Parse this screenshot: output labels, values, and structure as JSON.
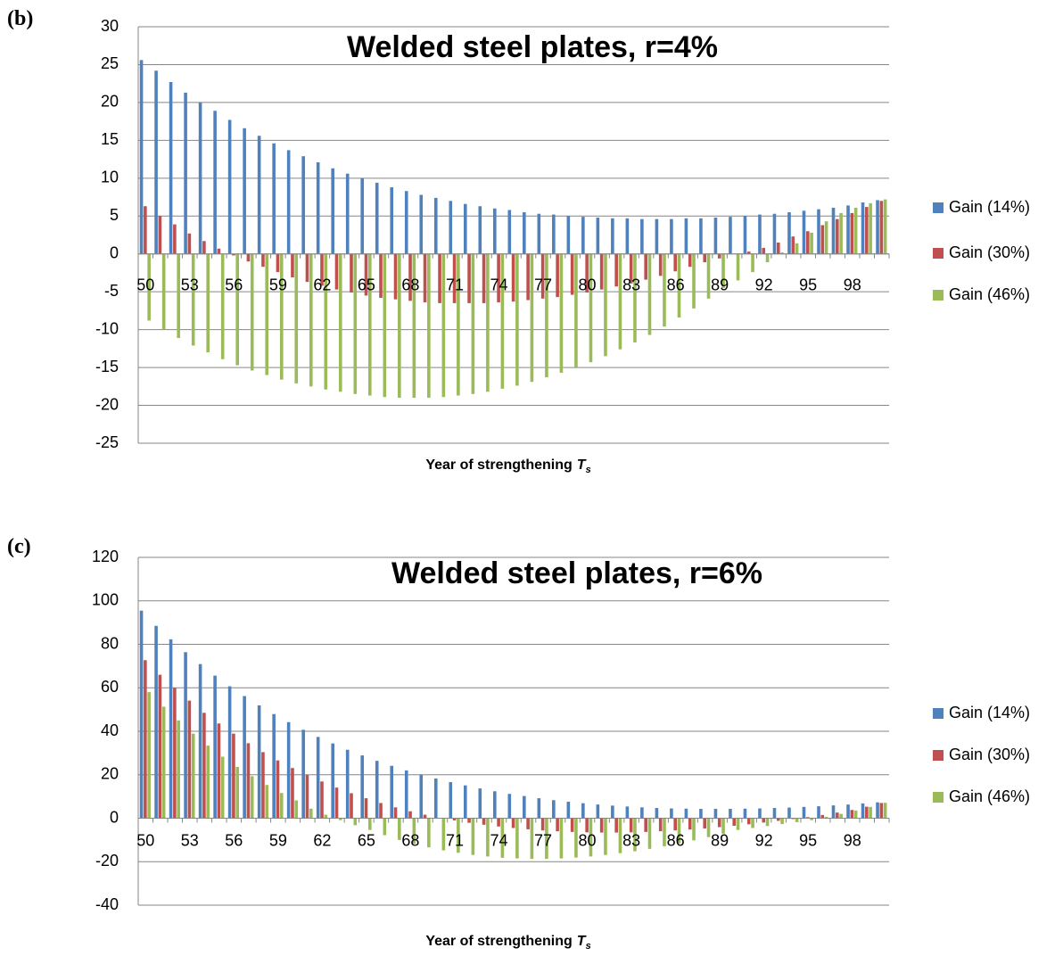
{
  "chart_data": [
    {
      "type": "bar",
      "panel_label": "(b)",
      "title": "Welded steel plates, r=4%",
      "x_label": "Year of strengthening",
      "x_label_var": "T",
      "x_label_sub": "s",
      "categories": [
        "50",
        null,
        null,
        "53",
        null,
        null,
        "56",
        null,
        null,
        "59",
        null,
        null,
        "62",
        null,
        null,
        "65",
        null,
        null,
        "68",
        null,
        null,
        "71",
        null,
        null,
        "74",
        null,
        null,
        "77",
        null,
        null,
        "80",
        null,
        null,
        "83",
        null,
        null,
        "86",
        null,
        null,
        "89",
        null,
        null,
        "92",
        null,
        null,
        "95",
        null,
        null,
        "98",
        null,
        null
      ],
      "series": [
        {
          "name": "Gain (14%)",
          "color": "#4f81bd",
          "values": [
            25.6,
            24.2,
            22.7,
            21.3,
            20.0,
            18.9,
            17.7,
            16.6,
            15.6,
            14.6,
            13.7,
            12.9,
            12.1,
            11.3,
            10.6,
            10.0,
            9.4,
            8.8,
            8.3,
            7.8,
            7.4,
            7.0,
            6.6,
            6.3,
            6.0,
            5.8,
            5.5,
            5.3,
            5.2,
            5.0,
            4.9,
            4.8,
            4.7,
            4.7,
            4.6,
            4.6,
            4.6,
            4.7,
            4.7,
            4.8,
            4.9,
            5.0,
            5.2,
            5.3,
            5.5,
            5.7,
            5.9,
            6.1,
            6.4,
            6.8,
            7.1
          ]
        },
        {
          "name": "Gain (30%)",
          "color": "#c0504d",
          "values": [
            6.3,
            5.0,
            3.9,
            2.7,
            1.7,
            0.7,
            -0.2,
            -1.0,
            -1.7,
            -2.4,
            -3.1,
            -3.7,
            -4.2,
            -4.7,
            -5.1,
            -5.5,
            -5.8,
            -6.0,
            -6.2,
            -6.4,
            -6.5,
            -6.5,
            -6.5,
            -6.5,
            -6.4,
            -6.3,
            -6.1,
            -5.9,
            -5.7,
            -5.4,
            -5.1,
            -4.7,
            -4.3,
            -3.9,
            -3.4,
            -2.9,
            -2.3,
            -1.7,
            -1.1,
            -0.6,
            0.0,
            0.3,
            0.8,
            1.5,
            2.3,
            3.0,
            3.8,
            4.6,
            5.4,
            6.2,
            7.0
          ]
        },
        {
          "name": "Gain (46%)",
          "color": "#9bbb59",
          "values": [
            -8.8,
            -10.0,
            -11.1,
            -12.1,
            -13.0,
            -13.9,
            -14.7,
            -15.4,
            -16.0,
            -16.6,
            -17.1,
            -17.5,
            -17.9,
            -18.2,
            -18.5,
            -18.7,
            -18.9,
            -19.0,
            -19.0,
            -19.0,
            -18.9,
            -18.7,
            -18.5,
            -18.2,
            -17.8,
            -17.4,
            -16.9,
            -16.3,
            -15.7,
            -15.0,
            -14.3,
            -13.5,
            -12.6,
            -11.7,
            -10.7,
            -9.6,
            -8.4,
            -7.2,
            -5.9,
            -4.5,
            -3.5,
            -2.4,
            -1.1,
            0.2,
            1.4,
            2.8,
            4.3,
            5.4,
            6.1,
            6.7,
            7.2
          ]
        }
      ],
      "ylim": [
        -25,
        30
      ],
      "yticks": [
        -25,
        -20,
        -15,
        -10,
        -5,
        0,
        5,
        10,
        15,
        20,
        25,
        30
      ],
      "grid": true,
      "legend": "right"
    },
    {
      "type": "bar",
      "panel_label": "(c)",
      "title": "Welded steel plates, r=6%",
      "x_label": "Year of strengthening",
      "x_label_var": "T",
      "x_label_sub": "s",
      "categories": [
        "50",
        null,
        null,
        "53",
        null,
        null,
        "56",
        null,
        null,
        "59",
        null,
        null,
        "62",
        null,
        null,
        "65",
        null,
        null,
        "68",
        null,
        null,
        "71",
        null,
        null,
        "74",
        null,
        null,
        "77",
        null,
        null,
        "80",
        null,
        null,
        "83",
        null,
        null,
        "86",
        null,
        null,
        "89",
        null,
        null,
        "92",
        null,
        null,
        "95",
        null,
        null,
        "98",
        null,
        null
      ],
      "series": [
        {
          "name": "Gain (14%)",
          "color": "#4f81bd",
          "values": [
            95.5,
            88.5,
            82.3,
            76.4,
            70.9,
            65.6,
            60.7,
            56.2,
            51.9,
            47.9,
            44.2,
            40.7,
            37.4,
            34.4,
            31.5,
            28.9,
            26.4,
            24.1,
            22.0,
            20.1,
            18.3,
            16.6,
            15.1,
            13.7,
            12.4,
            11.2,
            10.2,
            9.2,
            8.3,
            7.6,
            6.9,
            6.3,
            5.8,
            5.4,
            5.0,
            4.7,
            4.5,
            4.4,
            4.3,
            4.3,
            4.3,
            4.4,
            4.5,
            4.7,
            4.9,
            5.2,
            5.5,
            5.9,
            6.3,
            6.8,
            7.3
          ]
        },
        {
          "name": "Gain (30%)",
          "color": "#c0504d",
          "values": [
            72.7,
            66.0,
            60.0,
            54.1,
            48.5,
            43.6,
            38.9,
            34.5,
            30.4,
            26.6,
            23.1,
            19.9,
            16.9,
            14.1,
            11.5,
            9.2,
            7.0,
            5.0,
            3.2,
            1.6,
            0.2,
            -1.0,
            -2.1,
            -3.0,
            -3.8,
            -4.5,
            -5.1,
            -5.6,
            -6.0,
            -6.3,
            -6.5,
            -6.6,
            -6.6,
            -6.5,
            -6.3,
            -6.0,
            -5.6,
            -5.2,
            -4.7,
            -4.1,
            -3.5,
            -2.8,
            -2.0,
            -1.2,
            -0.4,
            0.5,
            1.5,
            2.6,
            3.8,
            5.3,
            7.0
          ]
        },
        {
          "name": "Gain (46%)",
          "color": "#9bbb59",
          "values": [
            58.0,
            51.3,
            45.0,
            38.9,
            33.4,
            28.3,
            23.6,
            19.3,
            15.3,
            11.6,
            8.2,
            4.4,
            1.6,
            -0.9,
            -3.2,
            -5.4,
            -7.8,
            -10.0,
            -11.8,
            -13.4,
            -14.8,
            -15.9,
            -16.9,
            -17.6,
            -18.2,
            -18.5,
            -18.7,
            -18.7,
            -18.5,
            -18.1,
            -17.6,
            -16.9,
            -16.1,
            -15.2,
            -14.1,
            -12.9,
            -11.6,
            -10.2,
            -8.7,
            -7.1,
            -5.4,
            -4.5,
            -3.6,
            -2.7,
            -1.8,
            -0.9,
            0.6,
            2.0,
            3.5,
            5.2,
            7.1
          ]
        }
      ],
      "ylim": [
        -40,
        120
      ],
      "yticks": [
        -40,
        -20,
        0,
        20,
        40,
        60,
        80,
        100,
        120
      ],
      "grid": true,
      "legend": "right"
    }
  ]
}
